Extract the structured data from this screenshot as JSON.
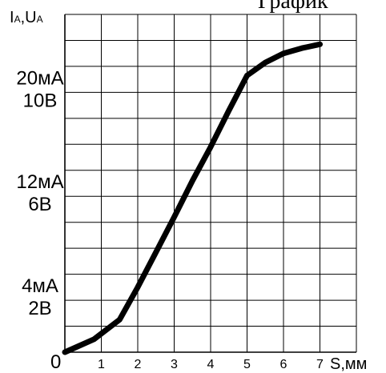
{
  "chart_data": {
    "type": "line",
    "title": "График",
    "ylabel_main": "I",
    "ylabel_sub1": "A",
    "ylabel_sep": ",U",
    "ylabel_sub2": "A",
    "xlabel": "S,мм",
    "origin_label": "0",
    "x_ticks": [
      "1",
      "2",
      "3",
      "4",
      "5",
      "6",
      "7"
    ],
    "y_tick_labels": [
      {
        "v": 20,
        "l1": "20мА",
        "l2": "10В"
      },
      {
        "v": 12,
        "l1": "12мА",
        "l2": "6В"
      },
      {
        "v": 4,
        "l1": "4мА",
        "l2": "2В"
      }
    ],
    "xlim": [
      0,
      8
    ],
    "ylim": [
      0,
      26
    ],
    "grid": true,
    "series": [
      {
        "color": "#000000",
        "x": [
          0,
          0.8,
          1.5,
          2.0,
          2.5,
          3.0,
          3.5,
          4.0,
          4.5,
          5.0,
          5.5,
          6.0,
          6.5,
          7.0
        ],
        "y": [
          0.0,
          1.0,
          2.5,
          5.0,
          7.7,
          10.4,
          13.2,
          15.8,
          18.6,
          21.3,
          22.3,
          23.0,
          23.4,
          23.7
        ]
      }
    ]
  }
}
